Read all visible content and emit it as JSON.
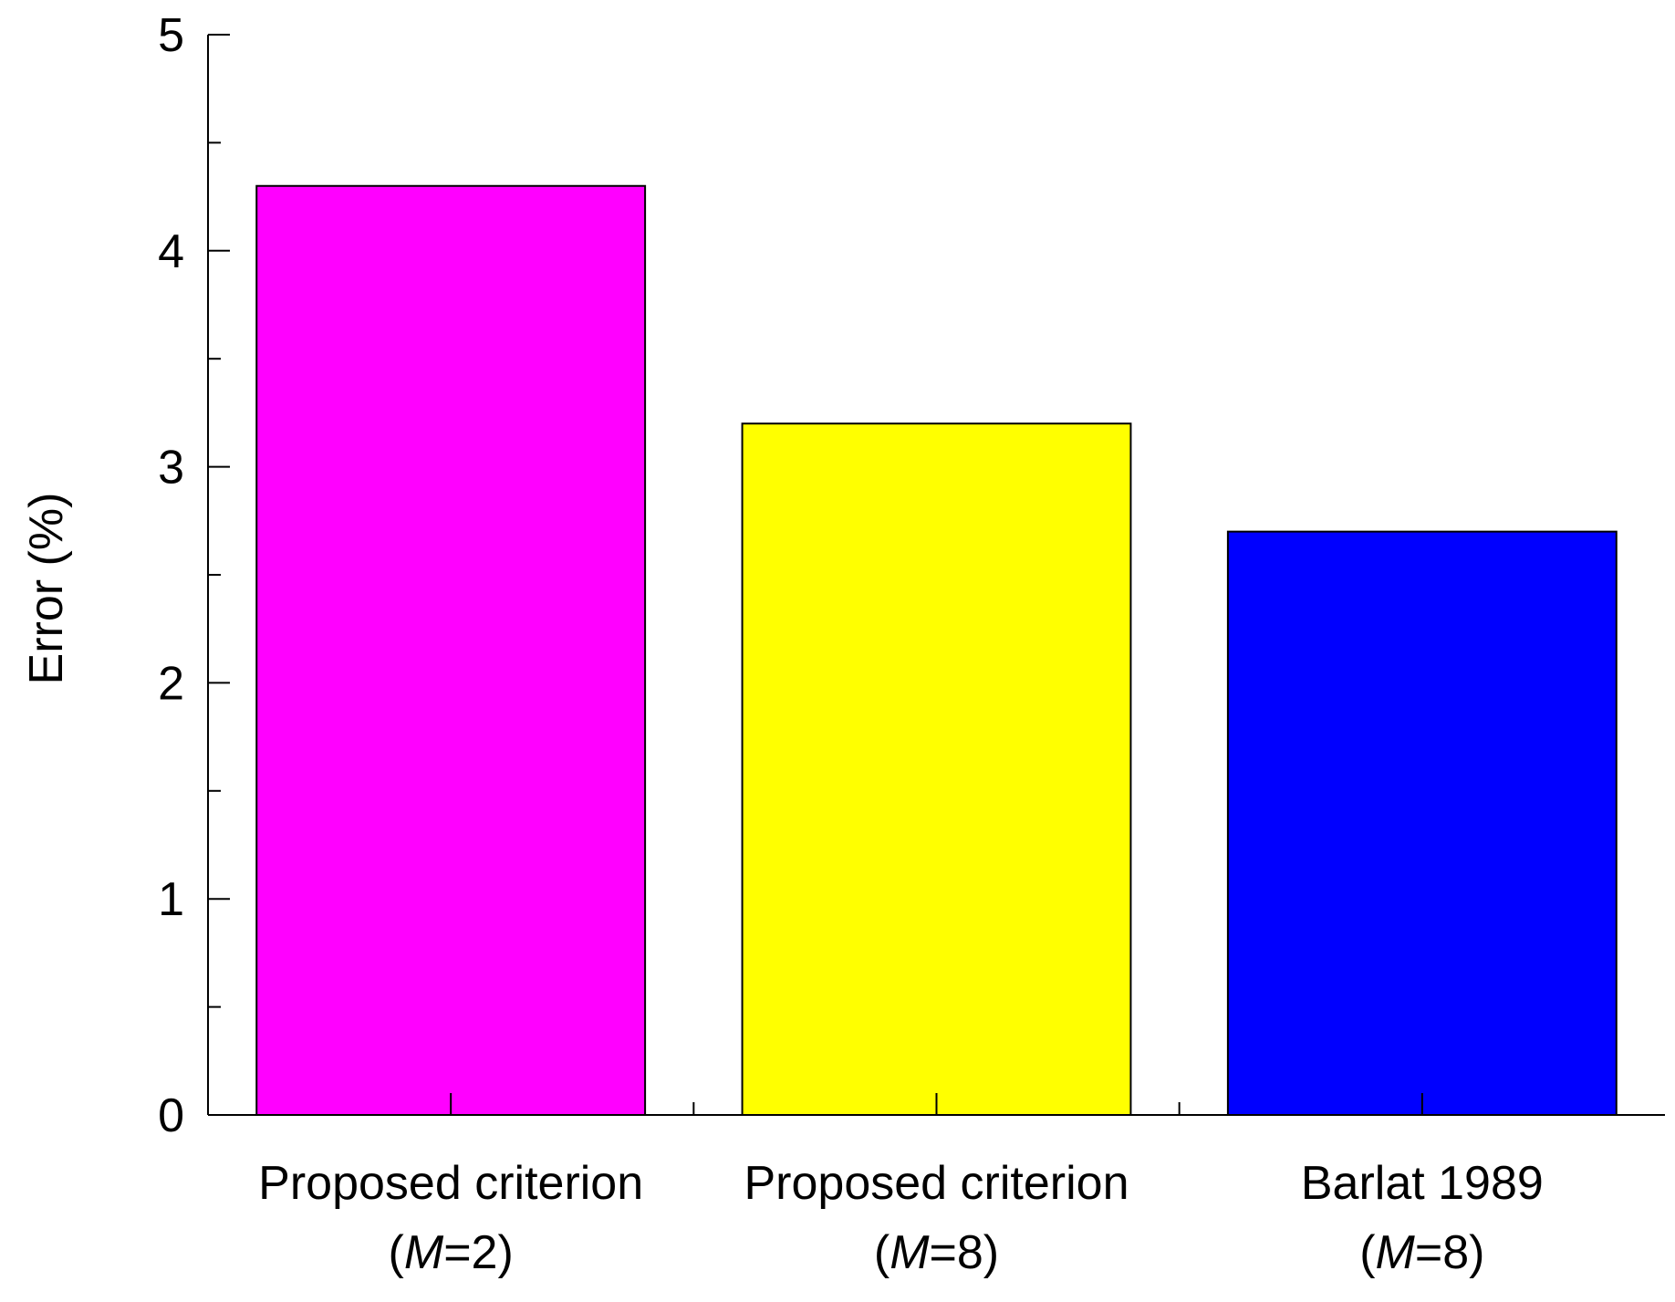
{
  "chart_data": {
    "type": "bar",
    "categories": [
      {
        "line1": "Proposed criterion",
        "line2_open": "(",
        "line2_var": "M",
        "line2_rest": "=2)"
      },
      {
        "line1": "Proposed criterion",
        "line2_open": "(",
        "line2_var": "M",
        "line2_rest": "=8)"
      },
      {
        "line1": "Barlat 1989",
        "line2_open": "(",
        "line2_var": "M",
        "line2_rest": "=8)"
      }
    ],
    "values": [
      4.3,
      3.2,
      2.7
    ],
    "colors": [
      "#ff00ff",
      "#ffff00",
      "#0000ff"
    ],
    "ylabel": "Error (%)",
    "ylim": [
      0,
      5
    ],
    "yticks": [
      0,
      1,
      2,
      3,
      4,
      5
    ],
    "grid": false
  }
}
